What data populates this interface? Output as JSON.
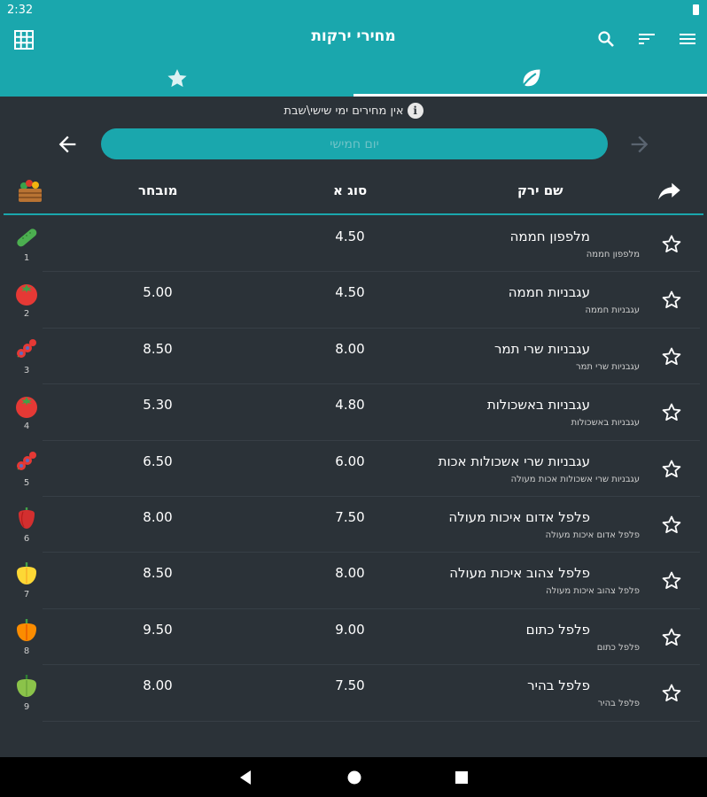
{
  "status": {
    "time": "2:32"
  },
  "app": {
    "title": "מחירי ירקות"
  },
  "icons": {
    "grid": "grid-icon",
    "search": "search-icon",
    "sort": "sort-icon",
    "menu": "menu-icon",
    "favorites_tab": "star-icon",
    "vegetables_tab": "leaf-icon",
    "info": "info-icon",
    "back": "arrow-left-icon",
    "forward": "arrow-right-icon",
    "share": "share-icon",
    "basket": "vegetable-basket-icon"
  },
  "notice": {
    "text": "אין מחירים ימי שישי\\שבת",
    "info_glyph": "i"
  },
  "date": {
    "placeholder": "יום חמישי"
  },
  "table": {
    "headers": {
      "name": "שם ירק",
      "grade_a": "סוג א",
      "premium": "מובחר"
    },
    "rows": [
      {
        "num": "1",
        "name": "מלפפון חממה",
        "sub": "מלפפון חממה",
        "grade_a": "4.50",
        "premium": "",
        "icon": "cucumber-icon"
      },
      {
        "num": "2",
        "name": "עגבניות חממה",
        "sub": "עגבניות חממה",
        "grade_a": "4.50",
        "premium": "5.00",
        "icon": "tomato-icon"
      },
      {
        "num": "3",
        "name": "עגבניות שרי תמר",
        "sub": "עגבניות שרי תמר",
        "grade_a": "8.00",
        "premium": "8.50",
        "icon": "cherry-tomato-icon"
      },
      {
        "num": "4",
        "name": "עגבניות באשכולות",
        "sub": "עגבניות באשכולות",
        "grade_a": "4.80",
        "premium": "5.30",
        "icon": "tomato-icon"
      },
      {
        "num": "5",
        "name": "עגבניות שרי אשכולות אכות",
        "sub": "עגבניות שרי אשכולות אכות מעולה",
        "grade_a": "6.00",
        "premium": "6.50",
        "icon": "cherry-tomato-icon"
      },
      {
        "num": "6",
        "name": "פלפל אדום איכות מעולה",
        "sub": "פלפל אדום איכות מעולה",
        "grade_a": "7.50",
        "premium": "8.00",
        "icon": "red-pepper-icon"
      },
      {
        "num": "7",
        "name": "פלפל צהוב איכות מעולה",
        "sub": "פלפל צהוב איכות מעולה",
        "grade_a": "8.00",
        "premium": "8.50",
        "icon": "yellow-pepper-icon"
      },
      {
        "num": "8",
        "name": "פלפל כתום",
        "sub": "פלפל כתום",
        "grade_a": "9.00",
        "premium": "9.50",
        "icon": "orange-pepper-icon"
      },
      {
        "num": "9",
        "name": "פלפל בהיר",
        "sub": "פלפל בהיר",
        "grade_a": "7.50",
        "premium": "8.00",
        "icon": "light-pepper-icon"
      }
    ]
  },
  "colors": {
    "accent": "#1aa7ad",
    "background": "#2b3238"
  }
}
